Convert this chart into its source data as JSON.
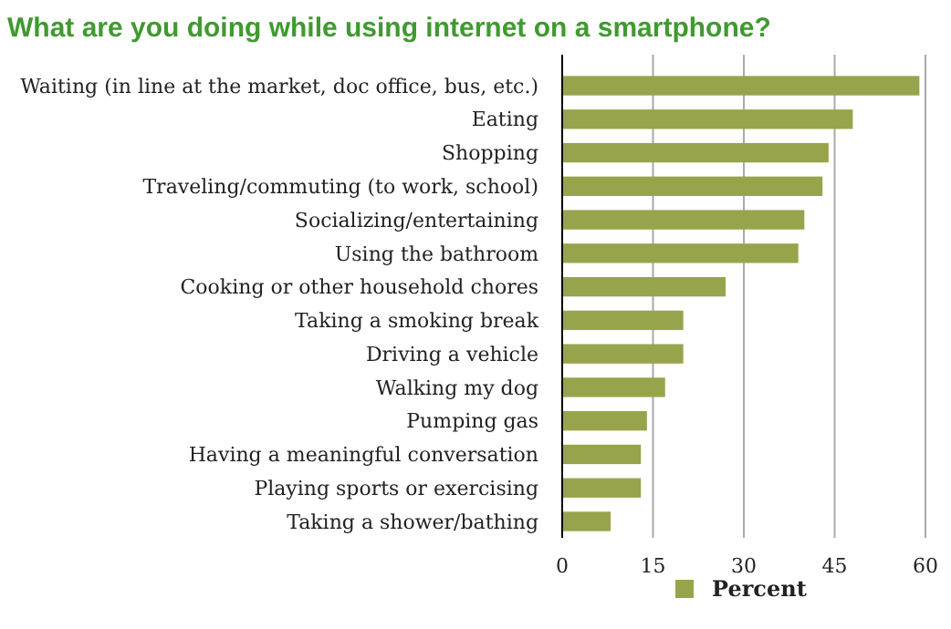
{
  "chart_data": {
    "type": "bar",
    "orientation": "horizontal",
    "title": "What are you doing while using internet on a smartphone?",
    "categories": [
      "Waiting (in line at the market, doc office, bus, etc.)",
      "Eating",
      "Shopping",
      "Traveling/commuting (to work, school)",
      "Socializing/entertaining",
      "Using the bathroom",
      "Cooking or other household chores",
      "Taking a smoking break",
      "Driving a vehicle",
      "Walking my dog",
      "Pumping gas",
      "Having a meaningful conversation",
      "Playing sports or exercising",
      "Taking a shower/bathing"
    ],
    "series": [
      {
        "name": "Percent",
        "color": "#98a44b",
        "values": [
          59,
          48,
          44,
          43,
          40,
          39,
          27,
          20,
          20,
          17,
          14,
          13,
          13,
          8
        ]
      }
    ],
    "xlim": [
      0,
      60
    ],
    "xticks": [
      0,
      15,
      30,
      45,
      60
    ],
    "grid": "x",
    "legend": "bottom"
  }
}
